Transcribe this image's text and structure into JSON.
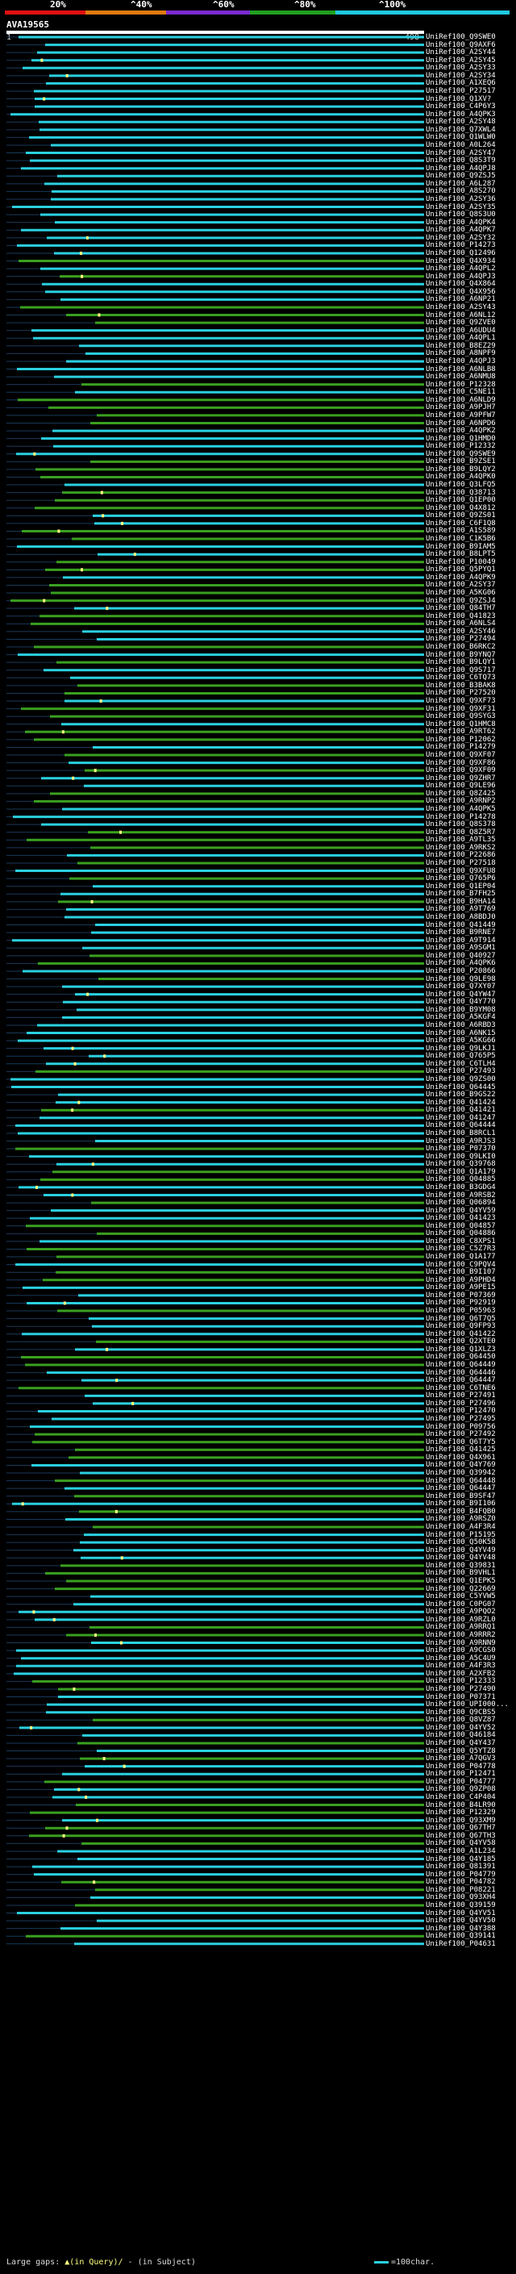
{
  "scale": {
    "labels": [
      "20%",
      "^40%",
      "^60%",
      "^80%",
      "^100%"
    ],
    "colors": [
      "#e01010",
      "#e07a10",
      "#7a2ad0",
      "#20a020",
      "#20c8e0"
    ]
  },
  "query": {
    "id": "AVA19565",
    "start": "1",
    "end": "498"
  },
  "colors": {
    "high": "#2ad0e0",
    "mid": "#3aa020",
    "gap_query": "#ffff80",
    "gap_subject": "#ffffff"
  },
  "hits": [
    "UniRef100_Q9SWE0",
    "UniRef100_Q9AXF6",
    "UniRef100_A2SY44",
    "UniRef100_A2SY45",
    "UniRef100_A2SY33",
    "UniRef100_A2SY34",
    "UniRef100_A1XEQ6",
    "UniRef100_P27517",
    "UniRef100_Q1XV?",
    "UniRef100_C4P6Y3",
    "UniRef100_A4QPK3",
    "UniRef100_A2SY48",
    "UniRef100_Q7XWL4",
    "UniRef100_Q1WLW0",
    "UniRef100_A0L264",
    "UniRef100_A2SY47",
    "UniRef100_Q8S3T9",
    "UniRef100_A4QPJ8",
    "UniRef100_Q9ZSJ5",
    "UniRef100_A6L287",
    "UniRef100_A8S270",
    "UniRef100_A2SY36",
    "UniRef100_A2SY35",
    "UniRef100_Q8S3U0",
    "UniRef100_A4QPK4",
    "UniRef100_A4QPK7",
    "UniRef100_A2SY32",
    "UniRef100_P14273",
    "UniRef100_Q12496",
    "UniRef100_Q4X934",
    "UniRef100_A4QPL2",
    "UniRef100_A4QPJ3",
    "UniRef100_Q4X864",
    "UniRef100_Q4X956",
    "UniRef100_A6NP21",
    "UniRef100_A2SY43",
    "UniRef100_A6NL12",
    "UniRef100_Q9ZVE0",
    "UniRef100_A6UDU4",
    "UniRef100_A4QPL1",
    "UniRef100_B8EZ29",
    "UniRef100_A8NPF9",
    "UniRef100_A4QPJ3",
    "UniRef100_A6NLB8",
    "UniRef100_A6NMU8",
    "UniRef100_P12328",
    "UniRef100_C5NE11",
    "UniRef100_A6NLD9",
    "UniRef100_A9PJH7",
    "UniRef100_A9PFW7",
    "UniRef100_A6NPD6",
    "UniRef100_A4QPK2",
    "UniRef100_Q1HMD0",
    "UniRef100_P12332",
    "UniRef100_Q9SWE9",
    "UniRef100_B9ZSE1",
    "UniRef100_B9LQY2",
    "UniRef100_A4QPK0",
    "UniRef100_Q3LFQ5",
    "UniRef100_Q38713",
    "UniRef100_Q1EP00",
    "UniRef100_Q4X812",
    "UniRef100_Q9ZS01",
    "UniRef100_C6F1Q8",
    "UniRef100_A1S589",
    "UniRef100_C1K5B6",
    "UniRef100_B9IAM5",
    "UniRef100_B8LPT5",
    "UniRef100_P10049",
    "UniRef100_Q5PYQ1",
    "UniRef100_A4QPK9",
    "UniRef100_A2SY37",
    "UniRef100_A5KG06",
    "UniRef100_Q9ZSJ4",
    "UniRef100_Q84TH7",
    "UniRef100_Q41823",
    "UniRef100_A6NLS4",
    "UniRef100_A2SY46",
    "UniRef100_P27494",
    "UniRef100_B6RKC2",
    "UniRef100_B9YNQ7",
    "UniRef100_B9LQY1",
    "UniRef100_Q9S717",
    "UniRef100_C6TQ73",
    "UniRef100_B3BAK8",
    "UniRef100_P27520",
    "UniRef100_Q9XF73",
    "UniRef100_Q9XF31",
    "UniRef100_Q9SYG3",
    "UniRef100_Q1HMC8",
    "UniRef100_A9RT62",
    "UniRef100_P12062",
    "UniRef100_P14279",
    "UniRef100_Q9XF07",
    "UniRef100_Q9XF86",
    "UniRef100_Q9XF09",
    "UniRef100_Q9ZHR7",
    "UniRef100_Q9LE96",
    "UniRef100_Q8Z425",
    "UniRef100_A9RNP2",
    "UniRef100_A4QPK5",
    "UniRef100_P14278",
    "UniRef100_Q8S378",
    "UniRef100_Q8Z5R7",
    "UniRef100_A9TL35",
    "UniRef100_A9RKS2",
    "UniRef100_P22686",
    "UniRef100_P27518",
    "UniRef100_Q9XFU8",
    "UniRef100_Q765P6",
    "UniRef100_Q1EP04",
    "UniRef100_B7FH25",
    "UniRef100_B9HA14",
    "UniRef100_A9T769",
    "UniRef100_A8BDJ0",
    "UniRef100_Q41449",
    "UniRef100_B9RNE7",
    "UniRef100_A9T914",
    "UniRef100_A9SGM1",
    "UniRef100_Q40927",
    "UniRef100_A4QPK6",
    "UniRef100_P20866",
    "UniRef100_Q9LE98",
    "UniRef100_Q7XY07",
    "UniRef100_Q4YW47",
    "UniRef100_Q4Y770",
    "UniRef100_B9YM08",
    "UniRef100_A5KGF4",
    "UniRef100_A6RBD3",
    "UniRef100_A6NK15",
    "UniRef100_A5KG66",
    "UniRef100_Q9LKJ1",
    "UniRef100_Q765P5",
    "UniRef100_C6TLH4",
    "UniRef100_P27493",
    "UniRef100_Q9ZS00",
    "UniRef100_Q64445",
    "UniRef100_B9GS22",
    "UniRef100_Q41424",
    "UniRef100_Q41421",
    "UniRef100_Q41247",
    "UniRef100_Q64444",
    "UniRef100_B8RCL1",
    "UniRef100_A9RJS3",
    "UniRef100_P07370",
    "UniRef100_Q9LKI0",
    "UniRef100_Q39768",
    "UniRef100_Q1A179",
    "UniRef100_Q04885",
    "UniRef100_B3GDG4",
    "UniRef100_A9RSB2",
    "UniRef100_Q06894",
    "UniRef100_Q4YV59",
    "UniRef100_Q41423",
    "UniRef100_Q04857",
    "UniRef100_Q04886",
    "UniRef100_C8XPS1",
    "UniRef100_C5Z7R3",
    "UniRef100_Q1A177",
    "UniRef100_C9PQV4",
    "UniRef100_B9I107",
    "UniRef100_A9PHD4",
    "UniRef100_A9PE15",
    "UniRef100_P07369",
    "UniRef100_P92919",
    "UniRef100_P05963",
    "UniRef100_Q6T7Q5",
    "UniRef100_Q9FP93",
    "UniRef100_Q41422",
    "UniRef100_Q2XTE0",
    "UniRef100_Q1XLZ3",
    "UniRef100_Q64450",
    "UniRef100_Q64449",
    "UniRef100_Q64446",
    "UniRef100_Q64447",
    "UniRef100_C6TNE6",
    "UniRef100_P27491",
    "UniRef100_P27496",
    "UniRef100_P12470",
    "UniRef100_P27495",
    "UniRef100_P09756",
    "UniRef100_P27492",
    "UniRef100_Q6T7Y5",
    "UniRef100_Q41425",
    "UniRef100_Q4X961",
    "UniRef100_Q4Y769",
    "UniRef100_Q39942",
    "UniRef100_Q64448",
    "UniRef100_Q64447",
    "UniRef100_B9SF47",
    "UniRef100_B9I106",
    "UniRef100_B4FQB0",
    "UniRef100_A9RSZ0",
    "UniRef100_A4F3R4",
    "UniRef100_P15195",
    "UniRef100_Q50K58",
    "UniRef100_Q4YV49",
    "UniRef100_Q4YV48",
    "UniRef100_Q39831",
    "UniRef100_B9VHL1",
    "UniRef100_Q1EPK5",
    "UniRef100_Q22669",
    "UniRef100_C5YVW5",
    "UniRef100_C0PG07",
    "UniRef100_A9PQO2",
    "UniRef100_A9RZL0",
    "UniRef100_A9RRQ1",
    "UniRef100_A9RRR2",
    "UniRef100_A9RNN9",
    "UniRef100_A9CGS0",
    "UniRef100_A5C4U9",
    "UniRef100_A4F3R3",
    "UniRef100_A2XFB2",
    "UniRef100_P12333",
    "UniRef100_P27490",
    "UniRef100_P07371",
    "UniRef100_UPI000...",
    "UniRef100_Q9CBS5",
    "UniRef100_Q8VZ87",
    "UniRef100_Q4YV52",
    "UniRef100_Q46184",
    "UniRef100_Q4Y437",
    "UniRef100_Q5YTZ8",
    "UniRef100_A7QGV3",
    "UniRef100_P04778",
    "UniRef100_P12471",
    "UniRef100_P04777",
    "UniRef100_Q9ZP08",
    "UniRef100_C4P404",
    "UniRef100_B4LR90",
    "UniRef100_P12329",
    "UniRef100_Q93XM9",
    "UniRef100_Q67TH7",
    "UniRef100_Q67TH3",
    "UniRef100_Q4YV58",
    "UniRef100_A1L234",
    "UniRef100_Q4Y185",
    "UniRef100_Q81391",
    "UniRef100_P04779",
    "UniRef100_P04782",
    "UniRef100_P08221",
    "UniRef100_Q93XH4",
    "UniRef100_Q39159",
    "UniRef100_Q4YV51",
    "UniRef100_Q4YV50",
    "UniRef100_Q4Y388",
    "UniRef100_Q39141",
    "UniRef100_P04631"
  ],
  "footer": {
    "gaps_label": "Large gaps:",
    "gap_query_text": "▲(in Query)/",
    "gap_subject_text": "- (in Subject)",
    "scale_text": "=100char."
  }
}
